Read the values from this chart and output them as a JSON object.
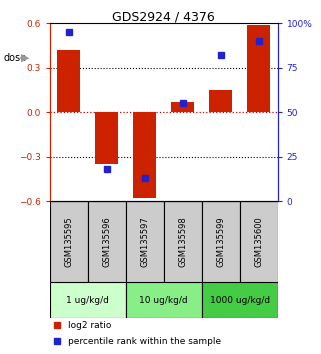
{
  "title": "GDS2924 / 4376",
  "samples": [
    "GSM135595",
    "GSM135596",
    "GSM135597",
    "GSM135598",
    "GSM135599",
    "GSM135600"
  ],
  "log2_ratio": [
    0.42,
    -0.35,
    -0.575,
    0.07,
    0.15,
    0.585
  ],
  "percentile_rank": [
    95,
    18,
    13,
    55,
    82,
    90
  ],
  "ylim_left": [
    -0.6,
    0.6
  ],
  "ylim_right": [
    0,
    100
  ],
  "yticks_left": [
    -0.6,
    -0.3,
    0.0,
    0.3,
    0.6
  ],
  "yticks_right": [
    0,
    25,
    50,
    75,
    100
  ],
  "ytick_labels_right": [
    "0",
    "25",
    "50",
    "75",
    "100%"
  ],
  "hlines_black": [
    0.3,
    -0.3
  ],
  "hline_red": 0.0,
  "bar_color": "#cc2200",
  "square_color": "#2222cc",
  "dose_groups": [
    {
      "label": "1 ug/kg/d",
      "samples": [
        0,
        1
      ],
      "color": "#ccffcc"
    },
    {
      "label": "10 ug/kg/d",
      "samples": [
        2,
        3
      ],
      "color": "#88ee88"
    },
    {
      "label": "1000 ug/kg/d",
      "samples": [
        4,
        5
      ],
      "color": "#44cc44"
    }
  ],
  "dose_label": "dose",
  "legend_red": "log2 ratio",
  "legend_blue": "percentile rank within the sample",
  "axis_left_color": "#cc2200",
  "axis_right_color": "#2222cc",
  "bg_color": "#ffffff",
  "sample_box_color": "#cccccc",
  "zero_line_color": "#cc0000",
  "bar_width": 0.6
}
